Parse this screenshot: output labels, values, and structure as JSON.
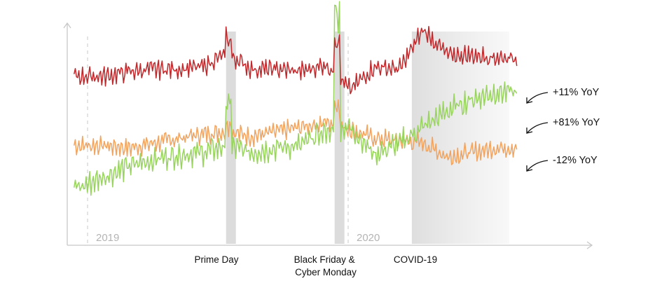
{
  "chart_data": {
    "type": "line",
    "title": "",
    "xlabel": "",
    "ylabel": "",
    "x_range": [
      "2019-01",
      "2020-06"
    ],
    "year_labels": [
      "2019",
      "2020"
    ],
    "grid": false,
    "legend": "none",
    "events": [
      {
        "label": "Prime Day",
        "from": "2019-07-14",
        "to": "2019-07-20"
      },
      {
        "label": "Black Friday & Cyber Monday",
        "from": "2019-11-26",
        "to": "2019-12-03"
      },
      {
        "label": "COVID-19",
        "from": "2020-03-01",
        "to": "2020-06-30",
        "style": "gradient"
      }
    ],
    "colors": {
      "red": "#c0282b",
      "orange": "#f2a35e",
      "green": "#98d45e",
      "band": "#dcdcdc"
    },
    "series": [
      {
        "annotation": "+11% YoY",
        "color": "#c0282b",
        "x": [
          "2019-01",
          "2019-02",
          "2019-03",
          "2019-04",
          "2019-05",
          "2019-06",
          "2019-07",
          "2019-08",
          "2019-09",
          "2019-10",
          "2019-11",
          "2019-12",
          "2020-01",
          "2020-02",
          "2020-03",
          "2020-04",
          "2020-05",
          "2020-06"
        ],
        "values": [
          58,
          58,
          60,
          61,
          61,
          62,
          68,
          61,
          61,
          60,
          63,
          52,
          62,
          61,
          78,
          67,
          67,
          66
        ]
      },
      {
        "annotation": "+81% YoY",
        "color": "#98d45e",
        "x": [
          "2019-01",
          "2019-02",
          "2019-03",
          "2019-04",
          "2019-05",
          "2019-06",
          "2019-07",
          "2019-08",
          "2019-09",
          "2019-10",
          "2019-11",
          "2019-12",
          "2020-01",
          "2020-02",
          "2020-03",
          "2020-04",
          "2020-05",
          "2020-06"
        ],
        "values": [
          10,
          15,
          19,
          22,
          24,
          25,
          28,
          25,
          27,
          28,
          34,
          36,
          24,
          29,
          36,
          43,
          48,
          51
        ]
      },
      {
        "annotation": "-12% YoY",
        "color": "#f2a35e",
        "x": [
          "2019-01",
          "2019-02",
          "2019-03",
          "2019-04",
          "2019-05",
          "2019-06",
          "2019-07",
          "2019-08",
          "2019-09",
          "2019-10",
          "2019-11",
          "2019-12",
          "2020-01",
          "2020-02",
          "2020-03",
          "2020-04",
          "2020-05",
          "2020-06"
        ],
        "values": [
          28,
          28,
          27,
          29,
          31,
          33,
          34,
          32,
          34,
          36,
          38,
          35,
          31,
          30,
          29,
          23,
          25,
          27
        ]
      }
    ]
  }
}
